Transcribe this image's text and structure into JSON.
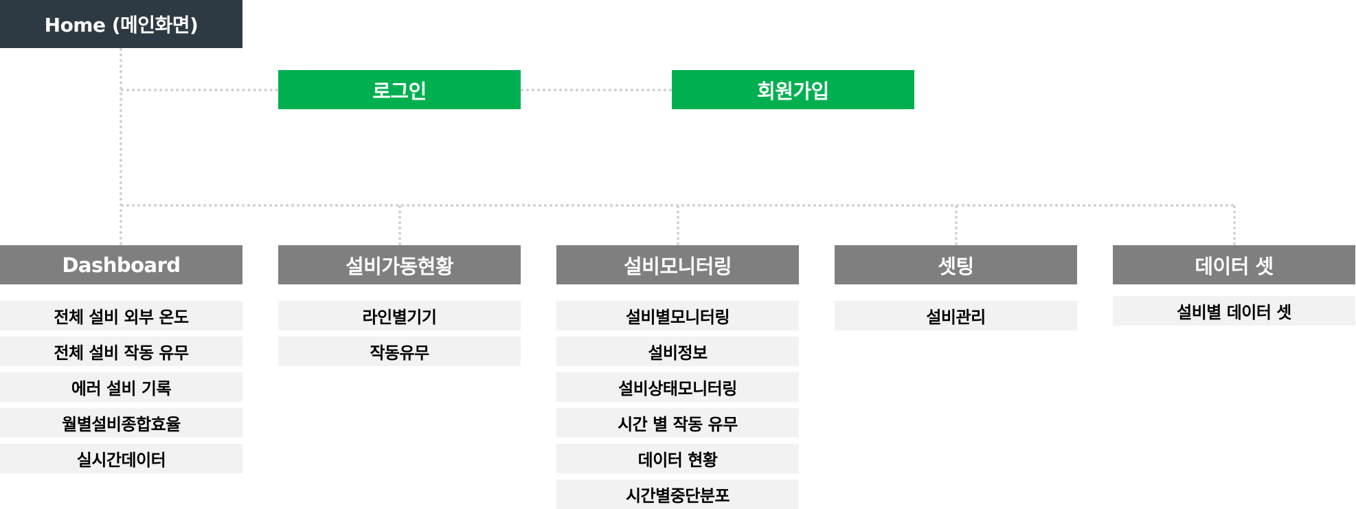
{
  "home": {
    "label": "Home (메인화면)"
  },
  "auth": {
    "login": "로그인",
    "signup": "회원가입"
  },
  "categories": [
    {
      "title": "Dashboard",
      "items": [
        "전체 설비 외부 온도",
        "전체 설비 작동 유무",
        "에러 설비 기록",
        "월별설비종합효율",
        "실시간데이터"
      ]
    },
    {
      "title": "설비가동현황",
      "items": [
        "라인별기기",
        "작동유무"
      ]
    },
    {
      "title": "설비모니터링",
      "items": [
        "설비별모니터링",
        "설비정보",
        "설비상태모니터링",
        "시간 별 작동 유무",
        "데이터 현황",
        "시간별중단분포"
      ]
    },
    {
      "title": "셋팅",
      "items": [
        "설비관리"
      ]
    },
    {
      "title": "데이터 셋",
      "items": [
        "설비별 데이터 셋"
      ]
    }
  ],
  "colors": {
    "home": "#2e3a43",
    "auth": "#00b050",
    "category": "#7f7f7f",
    "item": "#f2f2f2",
    "connector": "#d0d0d0"
  }
}
